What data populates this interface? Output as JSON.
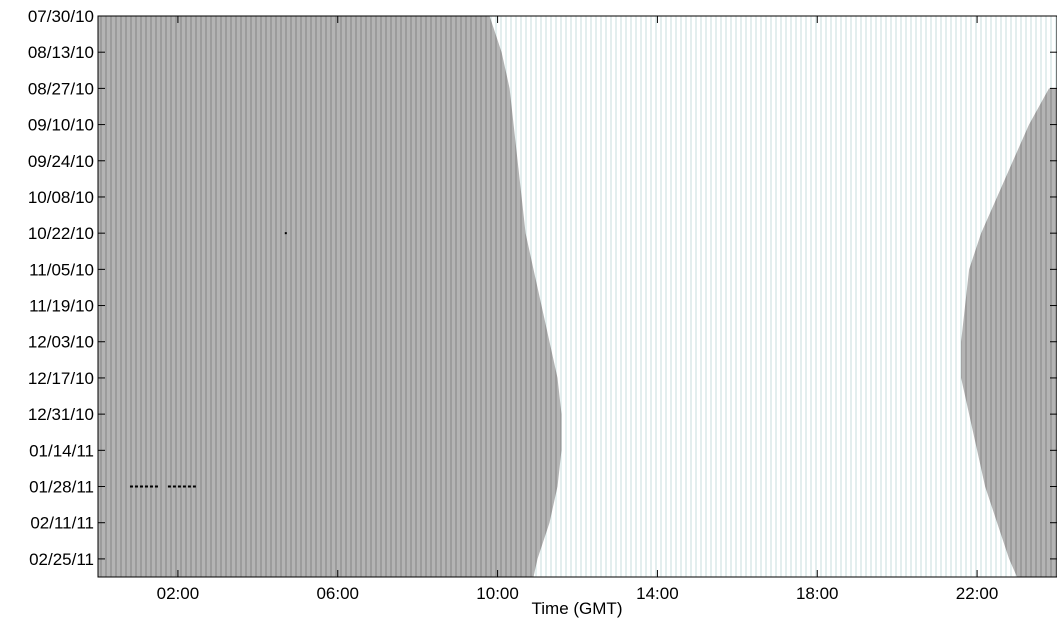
{
  "chart_data": {
    "type": "heatmap",
    "title": "",
    "xlabel": "Time (GMT)",
    "ylabel": "",
    "xlim": [
      0,
      24
    ],
    "y_date_range": [
      "07/30/10",
      "03/04/11"
    ],
    "xticks": [
      {
        "value": 2,
        "label": "02:00"
      },
      {
        "value": 6,
        "label": "06:00"
      },
      {
        "value": 10,
        "label": "10:00"
      },
      {
        "value": 14,
        "label": "14:00"
      },
      {
        "value": 18,
        "label": "18:00"
      },
      {
        "value": 22,
        "label": "22:00"
      }
    ],
    "yticks": [
      "07/30/10",
      "08/13/10",
      "08/27/10",
      "09/10/10",
      "09/24/10",
      "10/08/10",
      "10/22/10",
      "11/05/10",
      "11/19/10",
      "12/03/10",
      "12/17/10",
      "12/31/10",
      "01/14/11",
      "01/28/11",
      "02/11/11",
      "02/25/11"
    ],
    "series": [
      {
        "name": "night",
        "color": "#a9a9a9",
        "boundaries": [
          {
            "date": "07/30/10",
            "night_end": 9.8,
            "night_start": null
          },
          {
            "date": "08/13/10",
            "night_end": 10.1,
            "night_start": null
          },
          {
            "date": "08/27/10",
            "night_end": 10.3,
            "night_start": 23.8
          },
          {
            "date": "09/10/10",
            "night_end": 10.4,
            "night_start": 23.3
          },
          {
            "date": "09/24/10",
            "night_end": 10.5,
            "night_start": 22.9
          },
          {
            "date": "10/08/10",
            "night_end": 10.6,
            "night_start": 22.5
          },
          {
            "date": "10/22/10",
            "night_end": 10.7,
            "night_start": 22.1
          },
          {
            "date": "11/05/10",
            "night_end": 10.9,
            "night_start": 21.8
          },
          {
            "date": "11/19/10",
            "night_end": 11.1,
            "night_start": 21.7
          },
          {
            "date": "12/03/10",
            "night_end": 11.3,
            "night_start": 21.6
          },
          {
            "date": "12/17/10",
            "night_end": 11.5,
            "night_start": 21.6
          },
          {
            "date": "12/31/10",
            "night_end": 11.6,
            "night_start": 21.8
          },
          {
            "date": "01/14/11",
            "night_end": 11.6,
            "night_start": 22.0
          },
          {
            "date": "01/28/11",
            "night_end": 11.5,
            "night_start": 22.2
          },
          {
            "date": "02/11/11",
            "night_end": 11.3,
            "night_start": 22.5
          },
          {
            "date": "02/25/11",
            "night_end": 11.0,
            "night_start": 22.8
          },
          {
            "date": "03/04/11",
            "night_end": 10.9,
            "night_start": 23.0
          }
        ]
      },
      {
        "name": "day",
        "color": "#f4f8f8"
      }
    ],
    "marks": [
      {
        "date": "10/22/10",
        "x": 4.7
      },
      {
        "date": "01/28/11",
        "x_segments": [
          [
            0.8,
            1.55
          ],
          [
            1.75,
            2.45
          ]
        ]
      }
    ],
    "grid": false,
    "legend": "none"
  }
}
